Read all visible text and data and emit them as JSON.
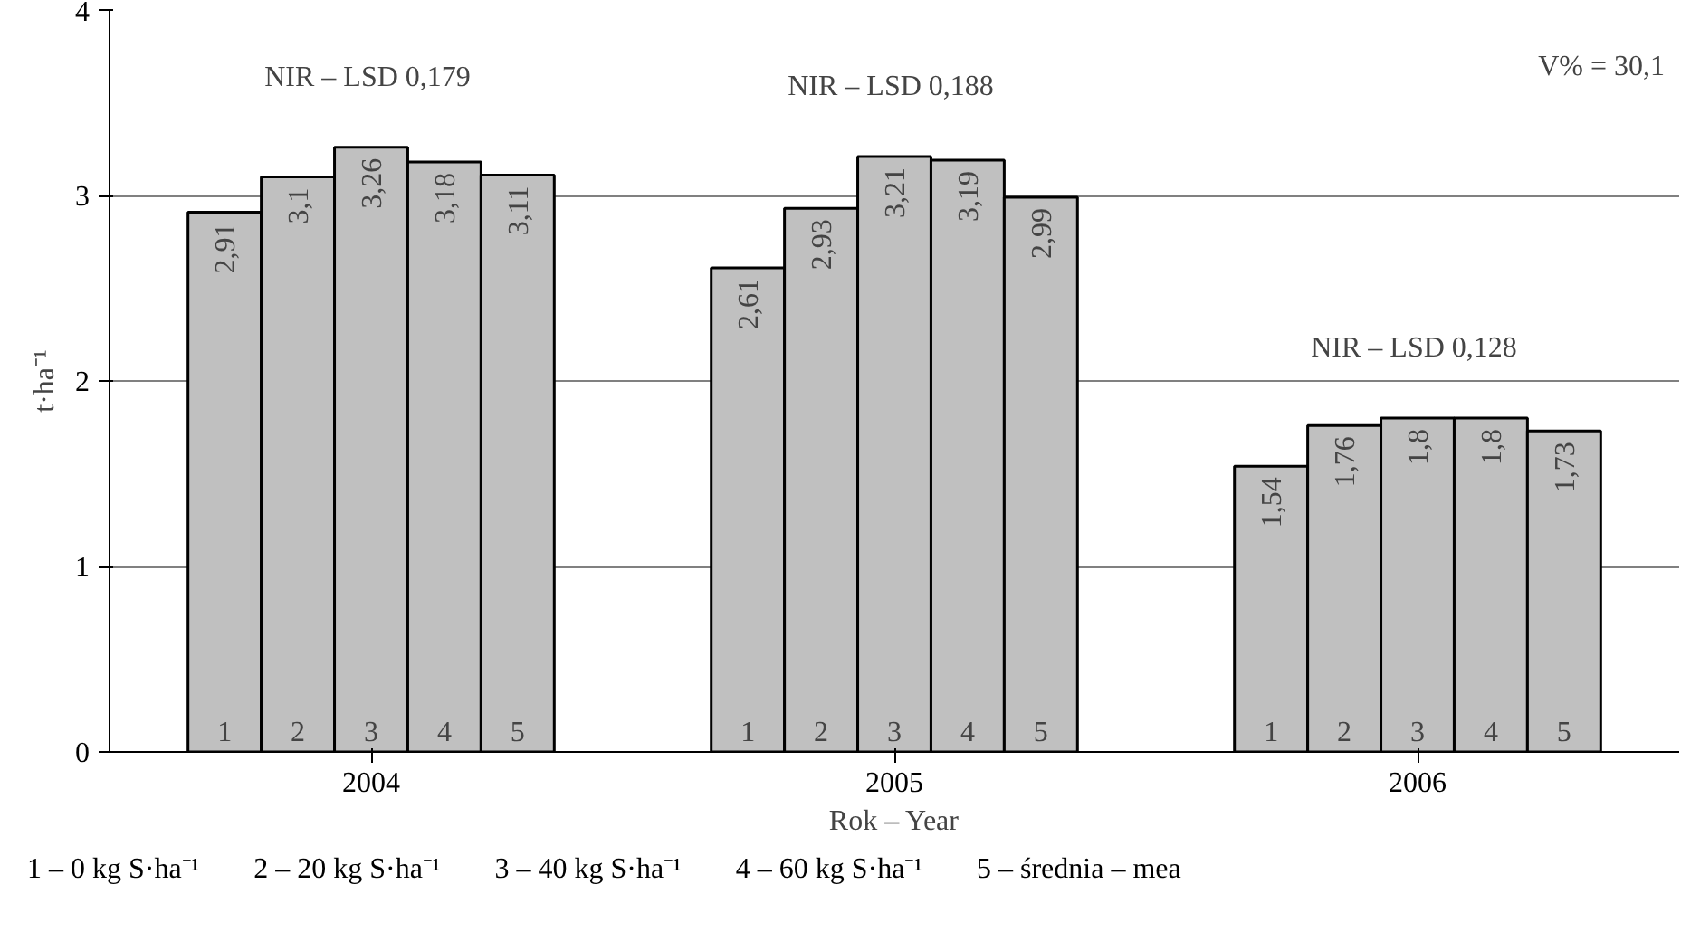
{
  "chart_data": {
    "type": "bar",
    "xlabel": "Rok – Year",
    "ylabel": "t·ha⁻¹",
    "categories": [
      "2004",
      "2005",
      "2006"
    ],
    "series": [
      {
        "name": "1",
        "color": "#c0c0c0",
        "values": [
          2.91,
          2.61,
          1.54
        ],
        "value_labels": [
          "2,91",
          "2,61",
          "1,54"
        ]
      },
      {
        "name": "2",
        "color": "#c0c0c0",
        "values": [
          3.1,
          2.93,
          1.76
        ],
        "value_labels": [
          "3,1",
          "2,93",
          "1,76"
        ]
      },
      {
        "name": "3",
        "color": "#c0c0c0",
        "values": [
          3.26,
          3.21,
          1.8
        ],
        "value_labels": [
          "3,26",
          "3,21",
          "1,8"
        ]
      },
      {
        "name": "4",
        "color": "#c0c0c0",
        "values": [
          3.18,
          3.19,
          1.8
        ],
        "value_labels": [
          "3,18",
          "3,19",
          "1,8"
        ]
      },
      {
        "name": "5",
        "color": "#c0c0c0",
        "values": [
          3.11,
          2.99,
          1.73
        ],
        "value_labels": [
          "3,11",
          "2,99",
          "1,73"
        ]
      }
    ],
    "ylim": [
      0,
      4
    ],
    "yticks": [
      0,
      1,
      2,
      3,
      4
    ],
    "grid": "y",
    "annotations": [
      "NIR – LSD  0,179",
      "NIR – LSD  0,188",
      "NIR – LSD  0,128",
      "V% = 30,1",
      "1 – 0 kg S·ha⁻¹",
      "2 – 20 kg S·ha⁻¹",
      "3 – 40 kg S·ha⁻¹",
      "4 – 60 kg S·ha⁻¹",
      "5 – średnia – mea"
    ]
  }
}
